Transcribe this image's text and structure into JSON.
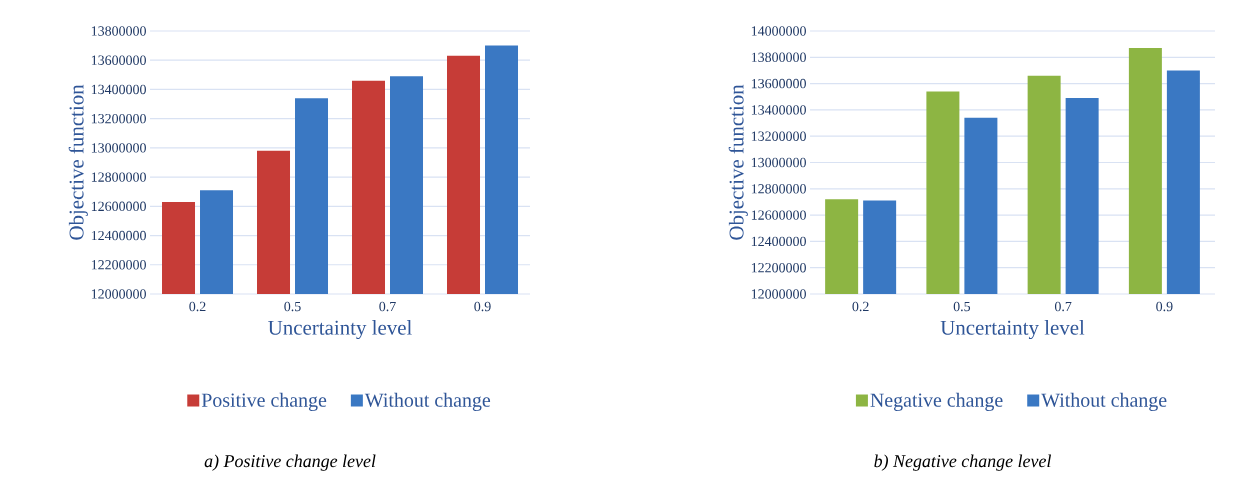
{
  "chart_data": [
    {
      "type": "bar",
      "xlabel": "Uncertainty level",
      "ylabel": "Objective function",
      "categories": [
        "0.2",
        "0.5",
        "0.7",
        "0.9"
      ],
      "series": [
        {
          "name": "Positive change",
          "color": "#c63c37",
          "values": [
            12630000,
            12980000,
            13460000,
            13630000
          ]
        },
        {
          "name": "Without change",
          "color": "#3a78c3",
          "values": [
            12710000,
            13340000,
            13490000,
            13700000
          ]
        }
      ],
      "ylim": [
        12000000,
        13800000
      ],
      "yticks": [
        12000000,
        12200000,
        12400000,
        12600000,
        12800000,
        13000000,
        13200000,
        13400000,
        13600000,
        13800000
      ],
      "grid": "y",
      "legend": "bottom",
      "annotations": [
        "a) Positive change level"
      ]
    },
    {
      "type": "bar",
      "xlabel": "Uncertainty level",
      "ylabel": "Objective function",
      "categories": [
        "0.2",
        "0.5",
        "0.7",
        "0.9"
      ],
      "series": [
        {
          "name": "Negative change",
          "color": "#8db543",
          "values": [
            12720000,
            13540000,
            13660000,
            13870000
          ]
        },
        {
          "name": "Without change",
          "color": "#3a78c3",
          "values": [
            12710000,
            13340000,
            13490000,
            13700000
          ]
        }
      ],
      "ylim": [
        12000000,
        14000000
      ],
      "yticks": [
        12000000,
        12200000,
        12400000,
        12600000,
        12800000,
        13000000,
        13200000,
        13400000,
        13600000,
        13800000,
        14000000
      ],
      "grid": "y",
      "legend": "bottom",
      "annotations": [
        "b) Negative change level"
      ]
    }
  ]
}
